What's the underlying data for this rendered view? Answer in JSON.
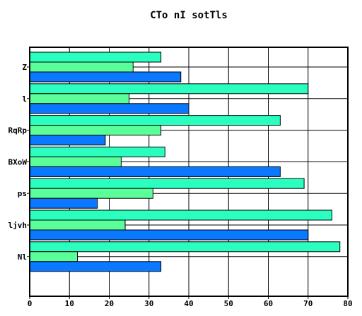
{
  "chart_data": {
    "type": "bar",
    "orientation": "horizontal",
    "title": "CTo nI sotTls",
    "xlabel": "",
    "ylabel": "",
    "categories": [
      "Z",
      "l",
      "RqRp",
      "BXoW",
      "ps",
      "ljvh",
      "Nl"
    ],
    "xlim": [
      0,
      80
    ],
    "xticks": [
      0,
      10,
      20,
      30,
      40,
      50,
      60,
      70,
      80
    ],
    "grid": true,
    "legend": "none",
    "series": [
      {
        "color": "#2affc0",
        "values": [
          33,
          70,
          63,
          34,
          69,
          76,
          78
        ]
      },
      {
        "color": "#5aff9a",
        "values": [
          26,
          25,
          33,
          23,
          31,
          24,
          12
        ]
      },
      {
        "color": "#0a78ff",
        "values": [
          38,
          40,
          19,
          63,
          17,
          70,
          33
        ]
      }
    ]
  }
}
